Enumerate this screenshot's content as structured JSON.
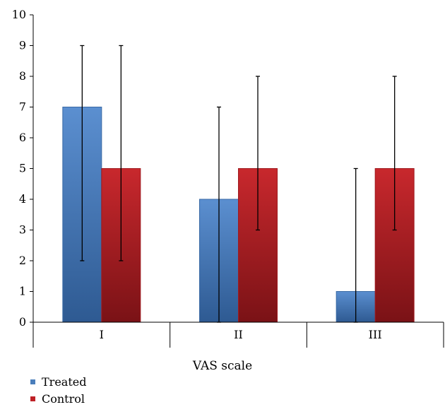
{
  "chart_data": {
    "type": "bar",
    "categories": [
      "I",
      "II",
      "III"
    ],
    "series": [
      {
        "name": "Treated",
        "values": [
          7,
          4,
          1
        ],
        "err_low": [
          2,
          0,
          0
        ],
        "err_high": [
          9,
          7,
          5
        ]
      },
      {
        "name": "Control",
        "values": [
          5,
          5,
          5
        ],
        "err_low": [
          2,
          3,
          3
        ],
        "err_high": [
          9,
          8,
          8
        ]
      }
    ],
    "xlabel": "VAS scale",
    "ylim": [
      0,
      10
    ],
    "yticks": [
      0,
      1,
      2,
      3,
      4,
      5,
      6,
      7,
      8,
      9,
      10
    ],
    "grid": false,
    "legend": "bottom-left",
    "colors": {
      "Treated": "#4a7ebb",
      "Control": "#be2126"
    }
  }
}
